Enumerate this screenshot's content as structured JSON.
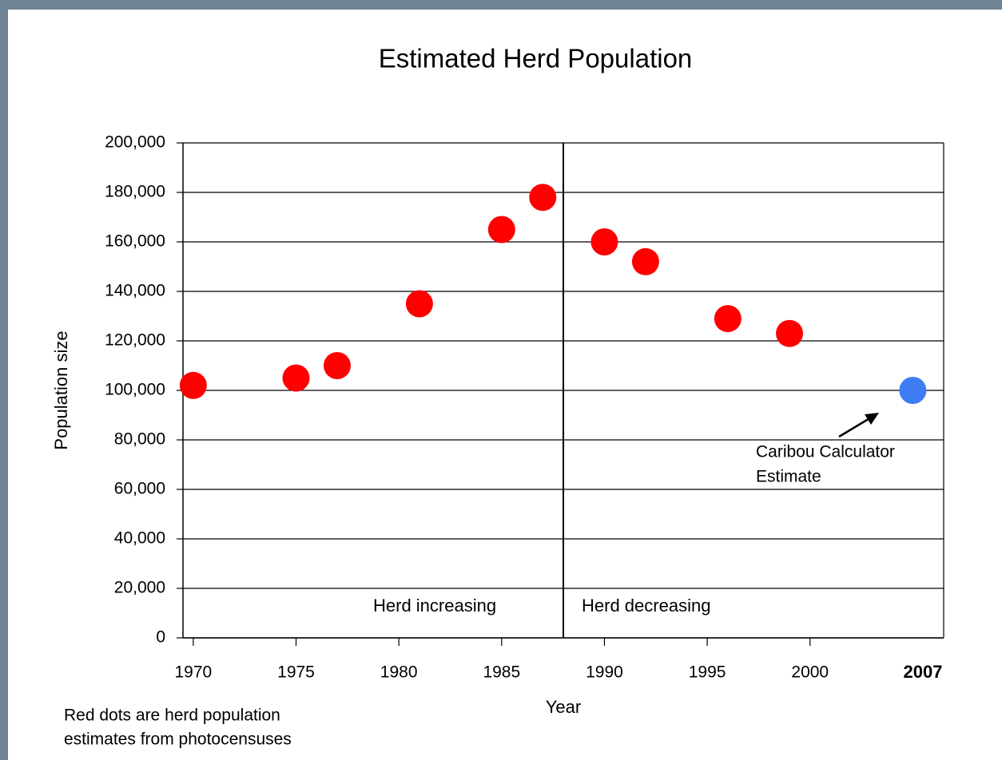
{
  "chart_data": {
    "type": "scatter",
    "title": "Estimated Herd Population",
    "x_label": "Year",
    "y_label": "Population size",
    "series": [
      {
        "color": "#ff0000",
        "x": [
          1970,
          1975,
          1977,
          1981,
          1985,
          1987,
          1990,
          1992,
          1996,
          1999
        ],
        "values": [
          102000,
          105000,
          110000,
          135000,
          165000,
          178000,
          160000,
          152000,
          129000,
          123000
        ]
      },
      {
        "color": "#3d7cf2",
        "x": [
          2005
        ],
        "values": [
          100000
        ]
      }
    ],
    "xlim": [
      1969.5,
      2006.5
    ],
    "xticks": [
      1970,
      1975,
      1980,
      1985,
      1990,
      1995,
      2000
    ],
    "ylim": [
      0,
      200000
    ],
    "yticks": [
      {
        "value": 0,
        "label": "0"
      },
      {
        "value": 20000,
        "label": "20,000"
      },
      {
        "value": 40000,
        "label": "40,000"
      },
      {
        "value": 60000,
        "label": "60,000"
      },
      {
        "value": 80000,
        "label": "80,000"
      },
      {
        "value": 100000,
        "label": "100,000"
      },
      {
        "value": 120000,
        "label": "120,000"
      },
      {
        "value": 140000,
        "label": "140,000"
      },
      {
        "value": 160000,
        "label": "160,000"
      },
      {
        "value": 180000,
        "label": "180,000"
      },
      {
        "value": 200000,
        "label": "200,000"
      }
    ],
    "grid": true,
    "divider_x": 1988,
    "annotations": {
      "left_region": "Herd increasing",
      "right_region": "Herd decreasing",
      "estimate": [
        "Caribou Calculator",
        "Estimate"
      ],
      "last_year": "2007",
      "footnote": [
        "Red dots are herd population",
        "estimates from photocensuses"
      ]
    }
  }
}
